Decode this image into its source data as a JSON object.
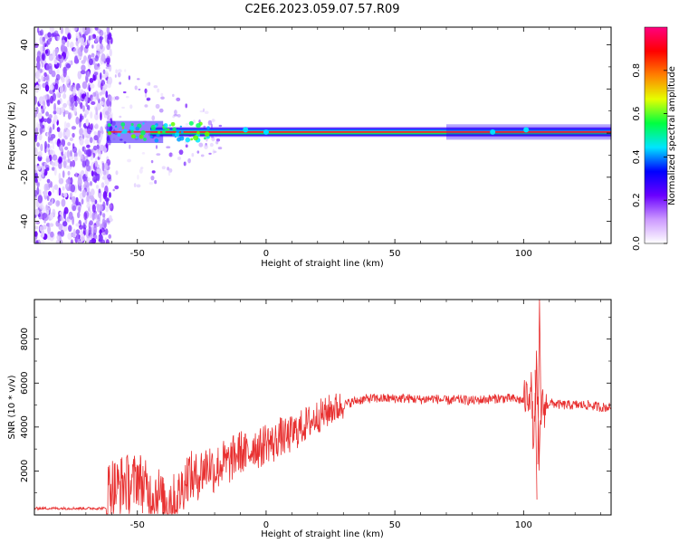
{
  "title": "C2E6.2023.059.07.57.R09",
  "chart_data": [
    {
      "type": "heatmap",
      "xlabel": "Height of straight line (km)",
      "ylabel": "Frequency (Hz)",
      "xlim": [
        -90,
        134
      ],
      "ylim": [
        -50,
        48
      ],
      "x_ticks": [
        -50,
        0,
        50,
        100
      ],
      "y_ticks": [
        -40,
        -20,
        0,
        20,
        40
      ],
      "colorbar": {
        "label": "Normalized spectral amplitude",
        "range": [
          0,
          1
        ],
        "ticks": [
          "0.0",
          "0.2",
          "0.4",
          "0.6",
          "0.8"
        ],
        "colormap": [
          "#ffffff",
          "#cc99ff",
          "#6a00ff",
          "#0000ff",
          "#00e5ff",
          "#00ff40",
          "#e5ff00",
          "#ff8000",
          "#ff0000",
          "#ff0080"
        ]
      },
      "description_regions": {
        "noise_region_x": [
          -90,
          -62
        ],
        "carrier_frequency_hz": 0.5
      }
    },
    {
      "type": "line",
      "xlabel": "Height of straight line (km)",
      "ylabel": "SNR (10 * v/v)",
      "xlim": [
        -90,
        134
      ],
      "ylim": [
        0,
        9800
      ],
      "x_ticks": [
        -50,
        0,
        50,
        100
      ],
      "y_ticks": [
        2000,
        4000,
        6000,
        8000
      ],
      "line_color": "#e83030",
      "series": [
        {
          "x": [
            -90,
            -80,
            -70,
            -62,
            -61,
            -58,
            -55,
            -52,
            -50,
            -48,
            -45,
            -42,
            -40,
            -37,
            -35,
            -32,
            -30,
            -28,
            -25,
            -22,
            -20,
            -17,
            -15,
            -12,
            -10,
            -7,
            -5,
            -2,
            0,
            3,
            5,
            8,
            10,
            13,
            15,
            18,
            20,
            23,
            25,
            28,
            30,
            35,
            40,
            45,
            50,
            55,
            60,
            65,
            70,
            75,
            80,
            85,
            90,
            95,
            100,
            103,
            104,
            105,
            106,
            107,
            108,
            110,
            115,
            120,
            125,
            130,
            134
          ],
          "y": [
            300,
            300,
            300,
            300,
            1400,
            1200,
            1500,
            1300,
            1800,
            1400,
            900,
            1100,
            500,
            800,
            600,
            1400,
            1900,
            1600,
            2000,
            2300,
            2000,
            2400,
            2300,
            2700,
            2900,
            2700,
            3200,
            3000,
            3400,
            3200,
            3600,
            3500,
            3700,
            3900,
            4100,
            4300,
            4500,
            4600,
            4800,
            4900,
            5000,
            5200,
            5300,
            5300,
            5300,
            5300,
            5250,
            5300,
            5200,
            5250,
            5200,
            5250,
            5300,
            5300,
            5200,
            5700,
            3000,
            6800,
            2300,
            5100,
            4800,
            5100,
            5000,
            5000,
            5000,
            4900,
            4900
          ]
        }
      ]
    }
  ]
}
